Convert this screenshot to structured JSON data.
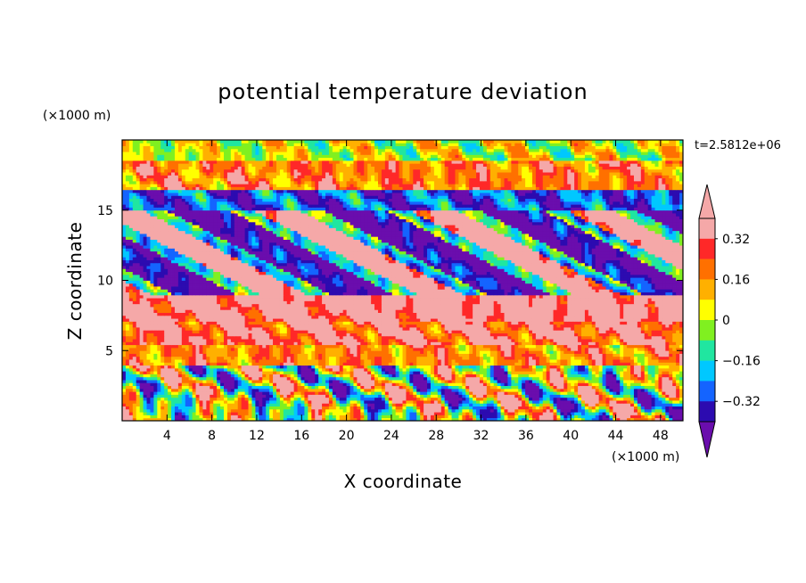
{
  "chart_data": {
    "type": "heatmap",
    "title": "potential temperature deviation",
    "xlabel": "X coordinate",
    "ylabel": "Z coordinate",
    "x_unit": "(×1000 m)",
    "y_unit": "(×1000 m)",
    "time_label": "t=2.5812e+06",
    "xlim": [
      0,
      50
    ],
    "ylim": [
      0,
      20
    ],
    "x_ticks": [
      4,
      8,
      12,
      16,
      20,
      24,
      28,
      32,
      36,
      40,
      44,
      48
    ],
    "y_ticks": [
      5,
      10,
      15
    ],
    "colorbar": {
      "levels": [
        -0.4,
        -0.32,
        -0.24,
        -0.16,
        -0.08,
        0,
        0.08,
        0.16,
        0.24,
        0.32,
        0.4
      ],
      "labels": [
        "0.32",
        "0.16",
        "0",
        "−0.16",
        "−0.32"
      ],
      "label_values": [
        0.32,
        0.16,
        0,
        -0.16,
        -0.32
      ],
      "colors": [
        "#6a0dad",
        "#2c0bb0",
        "#1464ff",
        "#00c8ff",
        "#20e6a0",
        "#80f020",
        "#ffff00",
        "#ffb000",
        "#ff7000",
        "#ff2828",
        "#f5a8a8"
      ],
      "extend": "both"
    },
    "field_bands": [
      {
        "z": [
          18.5,
          20
        ],
        "value": 0.02,
        "desc_color": "green"
      },
      {
        "z": [
          16.5,
          18.5
        ],
        "value": 0.2,
        "desc_color": "mixed warm"
      },
      {
        "z": [
          14,
          16.5
        ],
        "value": -0.3,
        "desc_color": "mixed"
      },
      {
        "z": [
          10,
          14
        ],
        "value": -0.35,
        "desc_color": "purple/pink streaks"
      },
      {
        "z": [
          7,
          10
        ],
        "value": 0.4,
        "desc_color": "pink"
      },
      {
        "z": [
          5.5,
          7
        ],
        "value": 0.3,
        "desc_color": "orange/red"
      },
      {
        "z": [
          4,
          5.5
        ],
        "value": 0.18,
        "desc_color": "yellow/purple"
      },
      {
        "z": [
          0,
          4
        ],
        "value": 0.0,
        "desc_color": "mixed cyan/green/orange"
      }
    ]
  }
}
